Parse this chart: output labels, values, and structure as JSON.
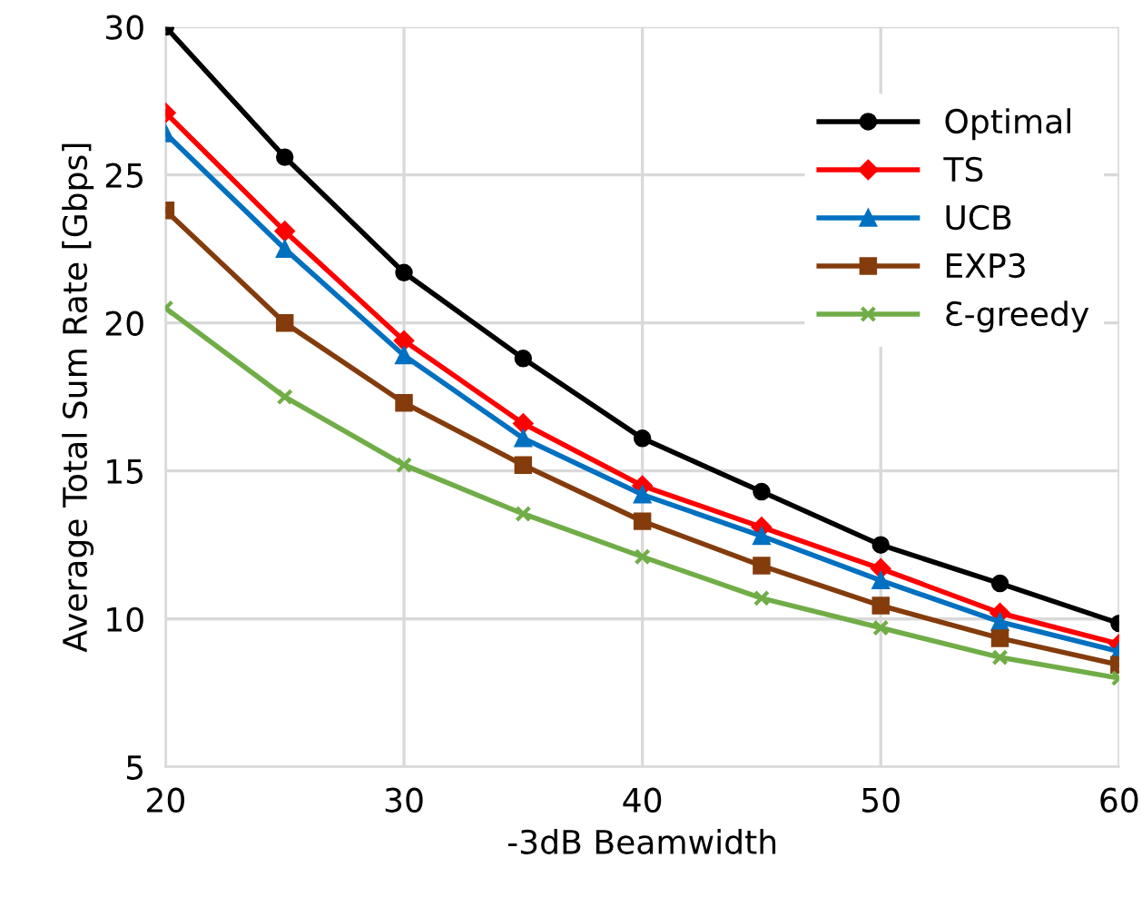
{
  "chart_data": {
    "type": "line",
    "xlabel": "-3dB Beamwidth",
    "ylabel": "Average Total Sum Rate [Gbps]",
    "x": [
      20,
      25,
      30,
      35,
      40,
      45,
      50,
      55,
      60
    ],
    "series": [
      {
        "name": "Optimal",
        "color": "#000000",
        "marker": "circle",
        "values": [
          30,
          25.6,
          21.7,
          18.8,
          16.1,
          14.3,
          12.5,
          11.2,
          9.85
        ]
      },
      {
        "name": "TS",
        "color": "#ff0000",
        "marker": "diamond",
        "values": [
          27.1,
          23.1,
          19.4,
          16.6,
          14.5,
          13.1,
          11.7,
          10.2,
          9.15
        ]
      },
      {
        "name": "UCB",
        "color": "#0070c0",
        "marker": "triangle",
        "values": [
          26.4,
          22.5,
          18.9,
          16.1,
          14.2,
          12.8,
          11.3,
          9.9,
          8.9
        ]
      },
      {
        "name": "EXP3",
        "color": "#843c0c",
        "marker": "square",
        "values": [
          23.8,
          20.0,
          17.3,
          15.2,
          13.3,
          11.8,
          10.45,
          9.35,
          8.45
        ]
      },
      {
        "name": "Ɛ-greedy",
        "color": "#70ad47",
        "marker": "cross",
        "values": [
          20.5,
          17.5,
          15.2,
          13.55,
          12.1,
          10.7,
          9.7,
          8.7,
          8.0
        ]
      }
    ],
    "xlim": [
      20,
      60
    ],
    "xticks": [
      20,
      30,
      40,
      50,
      60
    ],
    "ylim": [
      5,
      30
    ],
    "yticks": [
      5,
      10,
      15,
      20,
      25,
      30
    ],
    "grid": true,
    "legend": "top right",
    "line_style": "solid"
  }
}
